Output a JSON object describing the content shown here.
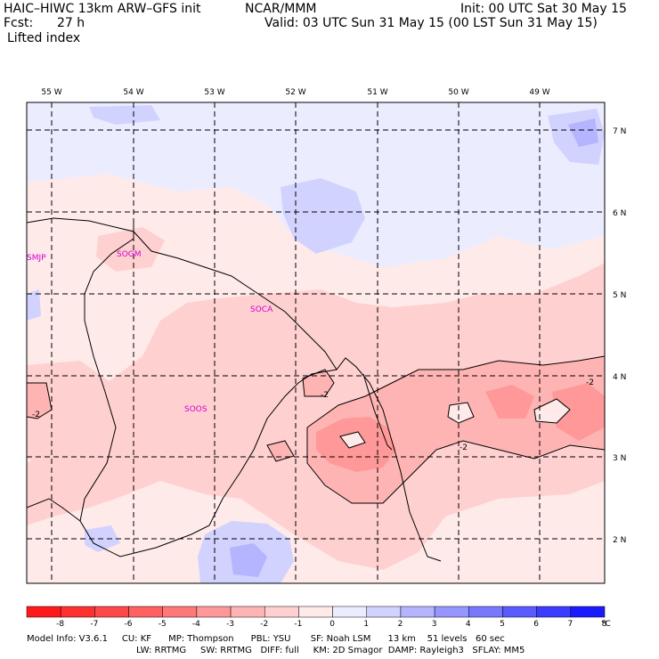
{
  "header": {
    "model": "HAIC–HIWC 13km ARW–GFS init",
    "org": "NCAR/MMM",
    "fcst_label": "Fcst:",
    "fcst_value": "27 h",
    "field": "Lifted index",
    "init": "Init: 00 UTC Sat 30 May 15",
    "valid": "Valid: 03 UTC Sun 31 May 15 (00 LST Sun 31 May 15)"
  },
  "map": {
    "lon_labels": [
      "55 W",
      "54 W",
      "53 W",
      "52 W",
      "51 W",
      "50 W",
      "49 W"
    ],
    "lat_labels": [
      "7 N",
      "6 N",
      "5 N",
      "4 N",
      "3 N",
      "2 N"
    ],
    "stations": [
      "SMJP",
      "SOGM",
      "SOCA",
      "SOOS"
    ],
    "contour_labels": [
      "-2",
      "-2",
      "-2",
      "-2"
    ]
  },
  "colorbar": {
    "labels": [
      "-8",
      "-7",
      "-6",
      "-5",
      "-4",
      "-3",
      "-2",
      "-1",
      "0",
      "1",
      "2",
      "3",
      "4",
      "5",
      "6",
      "7",
      "8"
    ],
    "unit": "°C",
    "colors": [
      "#ff1a1a",
      "#ff3030",
      "#ff4848",
      "#ff6060",
      "#ff7878",
      "#ff9898",
      "#ffb4b4",
      "#ffd0d0",
      "#ffeaea",
      "#ececff",
      "#d2d2ff",
      "#b4b4ff",
      "#9696ff",
      "#7878ff",
      "#5a5aff",
      "#3c3cff",
      "#1a1aff"
    ]
  },
  "footer": {
    "line1": "Model Info: V3.6.1     CU: KF      MP: Thompson      PBL: YSU       SF: Noah LSM      13 km    51 levels   60 sec",
    "line2": "LW: RRTMG     SW: RRTMG   DIFF: full     KM: 2D Smagor  DAMP: Rayleigh3   SFLAY: MM5"
  }
}
